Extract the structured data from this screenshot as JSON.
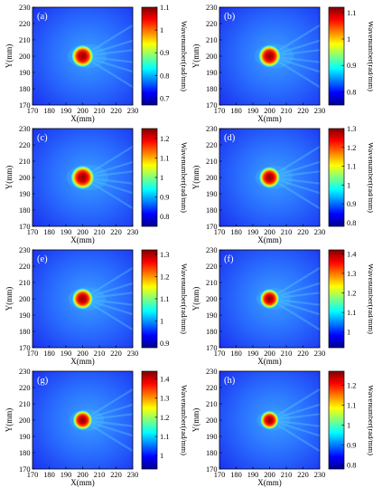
{
  "figure": {
    "colormap": [
      "#00008f",
      "#0000ff",
      "#007fff",
      "#00ffff",
      "#7fff7f",
      "#ffff00",
      "#ff7f00",
      "#ff0000",
      "#800000"
    ],
    "background_color": "#1e3cff"
  },
  "chart_data": [
    {
      "type": "heatmap",
      "panel_label": "(a)",
      "xlabel": "X(mm)",
      "ylabel": "Y(mm)",
      "colorbar_label": "Wavenumber(rad/mm)",
      "xlim": [
        170,
        230
      ],
      "ylim": [
        170,
        230
      ],
      "xticks": [
        170,
        180,
        190,
        200,
        210,
        220,
        230
      ],
      "yticks": [
        170,
        180,
        190,
        200,
        210,
        220,
        230
      ],
      "clim": [
        0.67,
        1.1
      ],
      "colorbar_ticks": [
        0.7,
        0.8,
        0.9,
        1,
        1.1
      ],
      "colorbar_tick_labels": [
        "0.7",
        "0.8",
        "0.9",
        "1",
        "1.1"
      ],
      "hotspot": {
        "center": [
          200,
          200
        ],
        "radius": 4.5
      }
    },
    {
      "type": "heatmap",
      "panel_label": "(b)",
      "xlabel": "X(mm)",
      "ylabel": "Y(mm)",
      "colorbar_label": "Wavenumber(rad/mm)",
      "xlim": [
        170,
        230
      ],
      "ylim": [
        170,
        230
      ],
      "xticks": [
        170,
        180,
        190,
        200,
        210,
        220,
        230
      ],
      "yticks": [
        170,
        180,
        190,
        200,
        210,
        220,
        230
      ],
      "clim": [
        0.75,
        1.12
      ],
      "colorbar_ticks": [
        0.8,
        0.9,
        1,
        1.1
      ],
      "colorbar_tick_labels": [
        "0.8",
        "0.9",
        "1",
        "1.1"
      ],
      "hotspot": {
        "center": [
          200,
          200
        ],
        "radius": 4.5
      }
    },
    {
      "type": "heatmap",
      "panel_label": "(c)",
      "xlabel": "X(mm)",
      "ylabel": "Y(mm)",
      "colorbar_label": "Wavenumber(rad/mm)",
      "xlim": [
        170,
        230
      ],
      "ylim": [
        170,
        230
      ],
      "xticks": [
        170,
        180,
        190,
        200,
        210,
        220,
        230
      ],
      "yticks": [
        170,
        180,
        190,
        200,
        210,
        220,
        230
      ],
      "clim": [
        0.75,
        1.25
      ],
      "colorbar_ticks": [
        0.8,
        0.9,
        1,
        1.1,
        1.2
      ],
      "colorbar_tick_labels": [
        "0.8",
        "0.9",
        "1",
        "1.1",
        "1.2"
      ],
      "hotspot": {
        "center": [
          200,
          200
        ],
        "radius": 4.8
      }
    },
    {
      "type": "heatmap",
      "panel_label": "(d)",
      "xlabel": "X(mm)",
      "ylabel": "Y(mm)",
      "colorbar_label": "Wavenumber(rad/mm)",
      "xlim": [
        170,
        230
      ],
      "ylim": [
        170,
        230
      ],
      "xticks": [
        170,
        180,
        190,
        200,
        210,
        220,
        230
      ],
      "yticks": [
        170,
        180,
        190,
        200,
        210,
        220,
        230
      ],
      "clim": [
        0.78,
        1.3
      ],
      "colorbar_ticks": [
        0.8,
        0.9,
        1,
        1.1,
        1.2,
        1.3
      ],
      "colorbar_tick_labels": [
        "0.8",
        "0.9",
        "1",
        "1.1",
        "1.2",
        "1.3"
      ],
      "hotspot": {
        "center": [
          200,
          200
        ],
        "radius": 4.3
      }
    },
    {
      "type": "heatmap",
      "panel_label": "(e)",
      "xlabel": "X(mm)",
      "ylabel": "Y(mm)",
      "colorbar_label": "Wavenumber(rad/mm)",
      "xlim": [
        170,
        230
      ],
      "ylim": [
        170,
        230
      ],
      "xticks": [
        170,
        180,
        190,
        200,
        210,
        220,
        230
      ],
      "yticks": [
        170,
        180,
        190,
        200,
        210,
        220,
        230
      ],
      "clim": [
        0.88,
        1.32
      ],
      "colorbar_ticks": [
        0.9,
        1,
        1.1,
        1.2,
        1.3
      ],
      "colorbar_tick_labels": [
        "0.9",
        "1",
        "1.1",
        "1.2",
        "1.3"
      ],
      "hotspot": {
        "center": [
          200,
          200
        ],
        "radius": 4.3
      }
    },
    {
      "type": "heatmap",
      "panel_label": "(f)",
      "xlabel": "X(mm)",
      "ylabel": "Y(mm)",
      "colorbar_label": "Wavenumber(rad/mm)",
      "xlim": [
        170,
        230
      ],
      "ylim": [
        170,
        230
      ],
      "xticks": [
        170,
        180,
        190,
        200,
        210,
        220,
        230
      ],
      "yticks": [
        170,
        180,
        190,
        200,
        210,
        220,
        230
      ],
      "clim": [
        0.92,
        1.42
      ],
      "colorbar_ticks": [
        1,
        1.1,
        1.2,
        1.3,
        1.4
      ],
      "colorbar_tick_labels": [
        "1",
        "1.1",
        "1.2",
        "1.3",
        "1.4"
      ],
      "hotspot": {
        "center": [
          200,
          200
        ],
        "radius": 4.0
      }
    },
    {
      "type": "heatmap",
      "panel_label": "(g)",
      "xlabel": "X(mm)",
      "ylabel": "Y(mm)",
      "colorbar_label": "Wavenumber(rad/mm)",
      "xlim": [
        170,
        230
      ],
      "ylim": [
        170,
        230
      ],
      "xticks": [
        170,
        180,
        190,
        200,
        210,
        220,
        230
      ],
      "yticks": [
        170,
        180,
        190,
        200,
        210,
        220,
        230
      ],
      "clim": [
        0.93,
        1.44
      ],
      "colorbar_ticks": [
        1,
        1.1,
        1.2,
        1.3,
        1.4
      ],
      "colorbar_tick_labels": [
        "1",
        "1.1",
        "1.2",
        "1.3",
        "1.4"
      ],
      "hotspot": {
        "center": [
          200,
          200
        ],
        "radius": 4.0
      }
    },
    {
      "type": "heatmap",
      "panel_label": "(h)",
      "xlabel": "X(mm)",
      "ylabel": "Y(mm)",
      "colorbar_label": "Wavenumber(rad/mm)",
      "xlim": [
        170,
        230
      ],
      "ylim": [
        170,
        230
      ],
      "xticks": [
        170,
        180,
        190,
        200,
        210,
        220,
        230
      ],
      "yticks": [
        170,
        180,
        190,
        200,
        210,
        220,
        230
      ],
      "clim": [
        0.78,
        1.27
      ],
      "colorbar_ticks": [
        0.8,
        0.9,
        1,
        1.1,
        1.2
      ],
      "colorbar_tick_labels": [
        "0.8",
        "0.9",
        "1",
        "1.1",
        "1.2"
      ],
      "hotspot": {
        "center": [
          200,
          200
        ],
        "radius": 3.8
      }
    }
  ]
}
